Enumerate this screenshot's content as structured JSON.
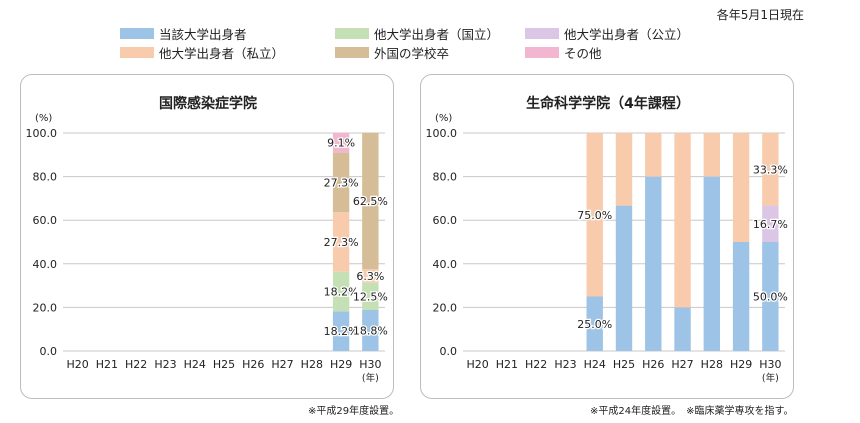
{
  "header": {
    "as_of": "各年5月1日現在"
  },
  "colors": {
    "own": "#9dc3e6",
    "national": "#c5e0b4",
    "public": "#dcc6e6",
    "private": "#f8cbad",
    "foreign": "#d5bd98",
    "other": "#f3b6d0",
    "grid": "#c8c8c8"
  },
  "legend": [
    {
      "key": "own",
      "label": "当該大学出身者"
    },
    {
      "key": "national",
      "label": "他大学出身者（国立）"
    },
    {
      "key": "public",
      "label": "他大学出身者（公立）"
    },
    {
      "key": "private",
      "label": "他大学出身者（私立）"
    },
    {
      "key": "foreign",
      "label": "外国の学校卒"
    },
    {
      "key": "other",
      "label": "その他"
    }
  ],
  "chart_data": [
    {
      "type": "bar",
      "stacked": true,
      "title": "国際感染症学院",
      "ylabel": "(%)",
      "xlabel": "(年)",
      "ylim": [
        0,
        100
      ],
      "yticks": [
        "0.0",
        "20.0",
        "40.0",
        "60.0",
        "80.0",
        "100.0"
      ],
      "categories": [
        "H20",
        "H21",
        "H22",
        "H23",
        "H24",
        "H25",
        "H26",
        "H27",
        "H28",
        "H29",
        "H30"
      ],
      "series": [
        {
          "key": "own",
          "name": "当該大学出身者",
          "values": [
            0,
            0,
            0,
            0,
            0,
            0,
            0,
            0,
            0,
            18.2,
            18.8
          ],
          "labels": [
            "",
            "",
            "",
            "",
            "",
            "",
            "",
            "",
            "",
            "18.2%",
            "18.8%"
          ]
        },
        {
          "key": "national",
          "name": "他大学出身者（国立）",
          "values": [
            0,
            0,
            0,
            0,
            0,
            0,
            0,
            0,
            0,
            18.2,
            12.5
          ],
          "labels": [
            "",
            "",
            "",
            "",
            "",
            "",
            "",
            "",
            "",
            "18.2%",
            "12.5%"
          ]
        },
        {
          "key": "public",
          "name": "他大学出身者（公立）",
          "values": [
            0,
            0,
            0,
            0,
            0,
            0,
            0,
            0,
            0,
            0,
            0
          ],
          "labels": [
            "",
            "",
            "",
            "",
            "",
            "",
            "",
            "",
            "",
            "",
            ""
          ]
        },
        {
          "key": "private",
          "name": "他大学出身者（私立）",
          "values": [
            0,
            0,
            0,
            0,
            0,
            0,
            0,
            0,
            0,
            27.3,
            6.3
          ],
          "labels": [
            "",
            "",
            "",
            "",
            "",
            "",
            "",
            "",
            "",
            "27.3%",
            "6.3%"
          ]
        },
        {
          "key": "foreign",
          "name": "外国の学校卒",
          "values": [
            0,
            0,
            0,
            0,
            0,
            0,
            0,
            0,
            0,
            27.3,
            62.5
          ],
          "labels": [
            "",
            "",
            "",
            "",
            "",
            "",
            "",
            "",
            "",
            "27.3%",
            "62.5%"
          ]
        },
        {
          "key": "other",
          "name": "その他",
          "values": [
            0,
            0,
            0,
            0,
            0,
            0,
            0,
            0,
            0,
            9.1,
            0
          ],
          "labels": [
            "",
            "",
            "",
            "",
            "",
            "",
            "",
            "",
            "",
            "9.1%",
            ""
          ]
        }
      ],
      "grid": true,
      "note": "※平成29年度設置。"
    },
    {
      "type": "bar",
      "stacked": true,
      "title": "生命科学学院（4年課程）",
      "ylabel": "(%)",
      "xlabel": "(年)",
      "ylim": [
        0,
        100
      ],
      "yticks": [
        "0.0",
        "20.0",
        "40.0",
        "60.0",
        "80.0",
        "100.0"
      ],
      "categories": [
        "H20",
        "H21",
        "H22",
        "H23",
        "H24",
        "H25",
        "H26",
        "H27",
        "H28",
        "H29",
        "H30"
      ],
      "series": [
        {
          "key": "own",
          "name": "当該大学出身者",
          "values": [
            0,
            0,
            0,
            0,
            25,
            66.7,
            80,
            20,
            80,
            50,
            50
          ],
          "labels": [
            "",
            "",
            "",
            "",
            "25.0%",
            "",
            "",
            "",
            "",
            "",
            "50.0%"
          ]
        },
        {
          "key": "national",
          "name": "他大学出身者（国立）",
          "values": [
            0,
            0,
            0,
            0,
            0,
            0,
            0,
            0,
            0,
            0,
            0
          ],
          "labels": [
            "",
            "",
            "",
            "",
            "",
            "",
            "",
            "",
            "",
            "",
            ""
          ]
        },
        {
          "key": "public",
          "name": "他大学出身者（公立）",
          "values": [
            0,
            0,
            0,
            0,
            0,
            0,
            0,
            0,
            0,
            0,
            16.7
          ],
          "labels": [
            "",
            "",
            "",
            "",
            "",
            "",
            "",
            "",
            "",
            "",
            "16.7%"
          ]
        },
        {
          "key": "private",
          "name": "他大学出身者（私立）",
          "values": [
            0,
            0,
            0,
            0,
            75,
            33.3,
            20,
            80,
            20,
            50,
            33.3
          ],
          "labels": [
            "",
            "",
            "",
            "",
            "75.0%",
            "",
            "",
            "",
            "",
            "",
            "33.3%"
          ]
        },
        {
          "key": "foreign",
          "name": "外国の学校卒",
          "values": [
            0,
            0,
            0,
            0,
            0,
            0,
            0,
            0,
            0,
            0,
            0
          ],
          "labels": [
            "",
            "",
            "",
            "",
            "",
            "",
            "",
            "",
            "",
            "",
            ""
          ]
        },
        {
          "key": "other",
          "name": "その他",
          "values": [
            0,
            0,
            0,
            0,
            0,
            0,
            0,
            0,
            0,
            0,
            0
          ],
          "labels": [
            "",
            "",
            "",
            "",
            "",
            "",
            "",
            "",
            "",
            "",
            ""
          ]
        }
      ],
      "grid": true,
      "note": "※平成24年度設置。　※臨床薬学専攻を指す。"
    }
  ]
}
